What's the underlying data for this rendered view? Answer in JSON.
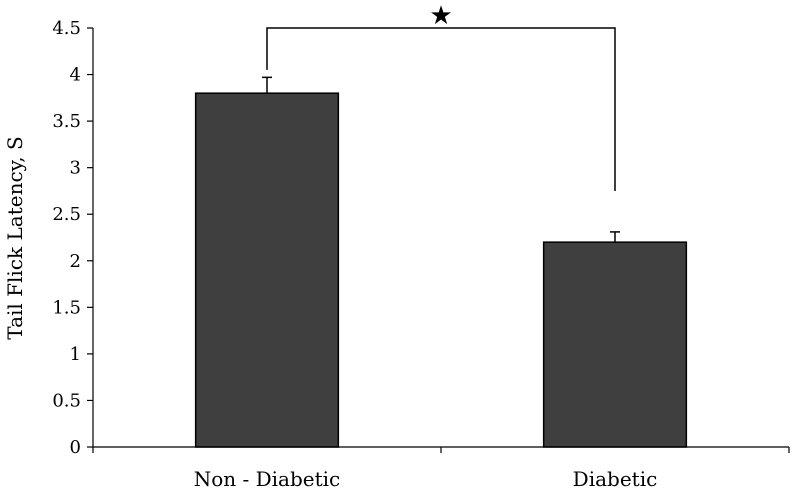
{
  "chart_data": {
    "type": "bar",
    "categories": [
      "Non - Diabetic",
      "Diabetic"
    ],
    "values": [
      3.8,
      2.2
    ],
    "errors": [
      0.17,
      0.11
    ],
    "ylabel": "Tail Flick Latency, S",
    "xlabel": "",
    "ylim": [
      0,
      4.5
    ],
    "yticks": [
      "0",
      "0.5",
      "1",
      "1.5",
      "2",
      "2.5",
      "3",
      "3.5",
      "4",
      "4.5"
    ],
    "bar_color": "#3f3f3f",
    "significance_marker": "★",
    "grid": false
  }
}
